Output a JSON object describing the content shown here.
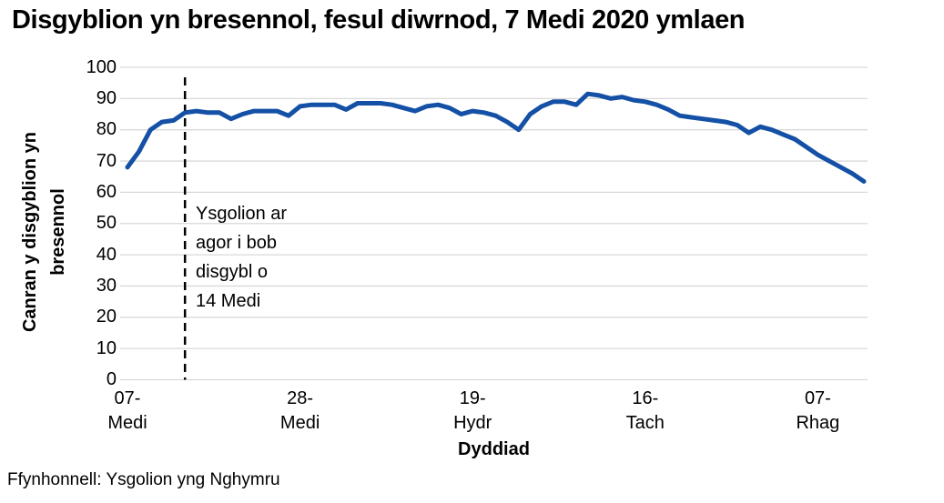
{
  "page": {
    "title": "Disgyblion yn bresennol, fesul diwrnod, 7 Medi 2020 ymlaen",
    "source": "Ffynhonnell: Ysgolion yng Nghymru"
  },
  "chart_data": {
    "type": "line",
    "title": "Disgyblion yn bresennol, fesul diwrnod, 7 Medi 2020 ymlaen",
    "xlabel": "Dyddiad",
    "ylabel": "Canran y disgyblion yn bresennol",
    "ylim": [
      0,
      100
    ],
    "y_ticks": [
      0,
      10,
      20,
      30,
      40,
      50,
      60,
      70,
      80,
      90,
      100
    ],
    "grid": "horizontal",
    "legend": "none",
    "line_color": "#1450A5",
    "gridline_color": "#d9d9d9",
    "x_ticks": [
      {
        "line1": "07-",
        "line2": "Medi",
        "day_index": 1
      },
      {
        "line1": "28-",
        "line2": "Medi",
        "day_index": 16
      },
      {
        "line1": "19-",
        "line2": "Hydr",
        "day_index": 31
      },
      {
        "line1": "16-",
        "line2": "Tach",
        "day_index": 46
      },
      {
        "line1": "07-",
        "line2": "Rhag",
        "day_index": 61
      }
    ],
    "series": [
      {
        "name": "Canran y disgyblion yn bresennol",
        "values": [
          68,
          73,
          80,
          82.5,
          83,
          85.5,
          86,
          85.5,
          85.5,
          83.5,
          85,
          86,
          86,
          86,
          84.5,
          87.5,
          88,
          88,
          88,
          86.5,
          88.5,
          88.5,
          88.5,
          88,
          87,
          86,
          87.5,
          88,
          87,
          85,
          86,
          85.5,
          84.5,
          82.5,
          80,
          85,
          87.5,
          89,
          89,
          88,
          91.5,
          91,
          90,
          90.5,
          89.5,
          89,
          88,
          86.5,
          84.5,
          84,
          83.5,
          83,
          82.5,
          81.5,
          79,
          81,
          80,
          78.5,
          77,
          74.5,
          72,
          70,
          68,
          66,
          63.5
        ]
      }
    ],
    "annotation": {
      "lines": [
        "Ysgolion ar",
        "agor i bob",
        "disgybl o",
        "14 Medi"
      ],
      "dashed_line_day_index": 6
    }
  }
}
